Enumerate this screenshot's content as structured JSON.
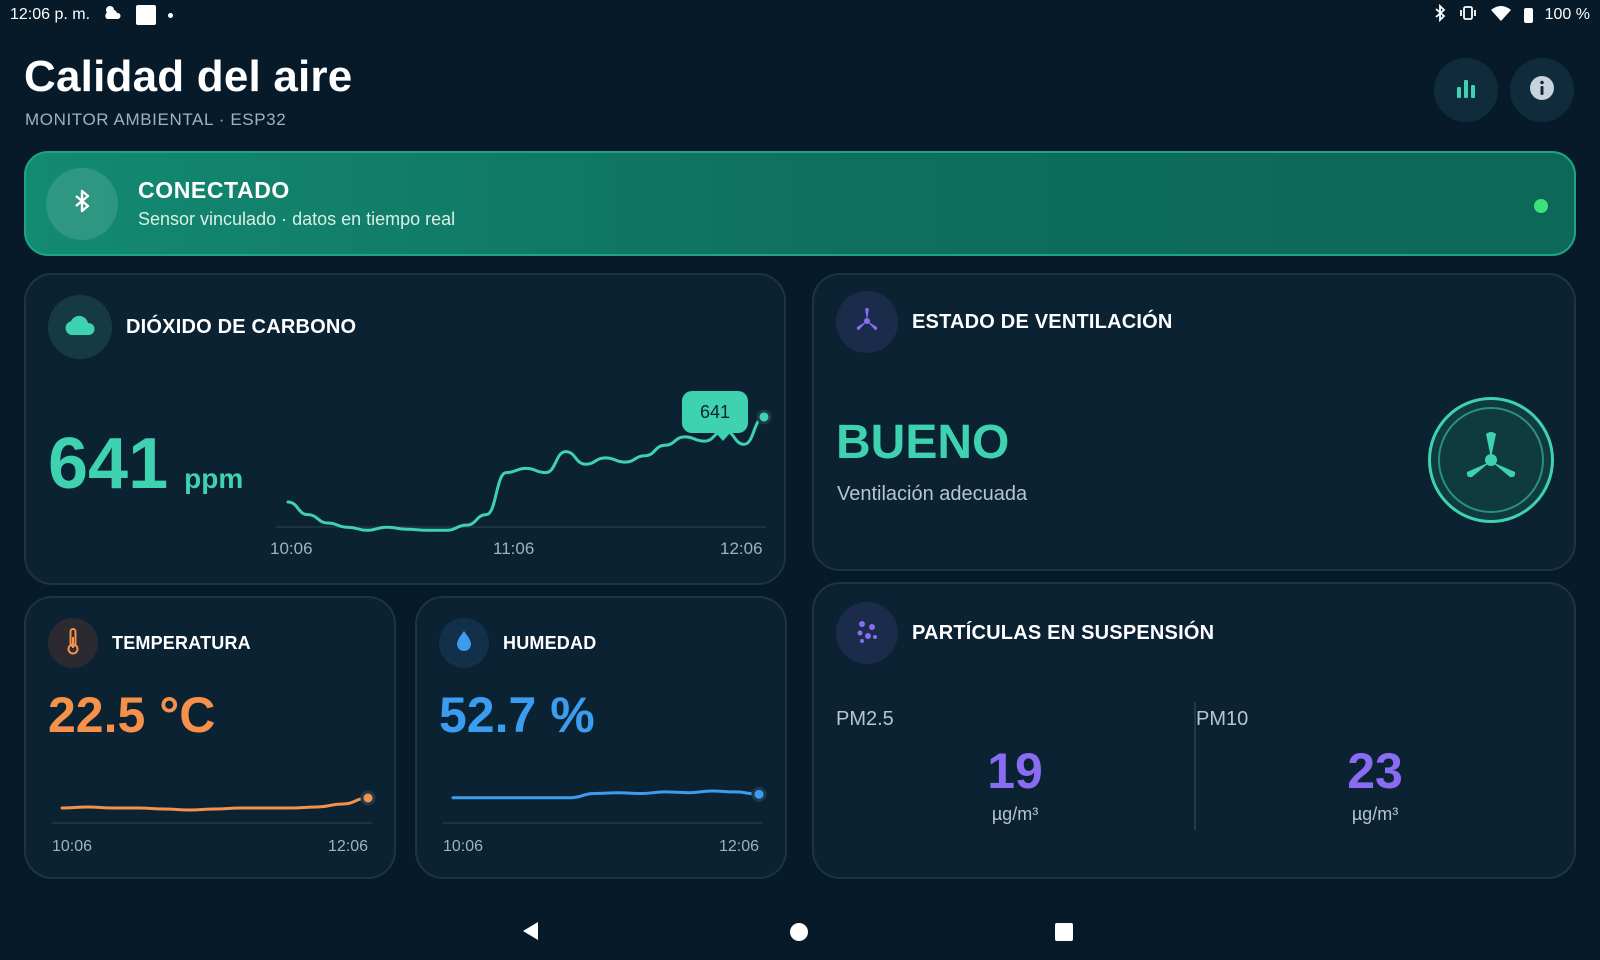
{
  "status_bar": {
    "time": "12:06 p. m.",
    "battery": "100 %",
    "icons": [
      "weather-icon",
      "notification-square-icon",
      "dot-icon",
      "bluetooth-icon",
      "vibrate-icon",
      "wifi-icon",
      "battery-icon"
    ]
  },
  "header": {
    "title": "Calidad del aire",
    "subtitle": "MONITOR AMBIENTAL · ESP32",
    "buttons": [
      {
        "name": "stats-button",
        "icon": "bar-chart-icon"
      },
      {
        "name": "info-button",
        "icon": "info-icon"
      }
    ]
  },
  "connection": {
    "status": "CONECTADO",
    "detail": "Sensor vinculado · datos en tiempo real",
    "indicator_color": "#3ee07a"
  },
  "co2": {
    "title": "DIÓXIDO DE CARBONO",
    "value": "641",
    "unit": "ppm",
    "tooltip": "641",
    "accent": "#3fd2b0"
  },
  "ventilation": {
    "title": "ESTADO DE VENTILACIÓN",
    "state": "BUENO",
    "description": "Ventilación adecuada",
    "accent": "#3fd2b0"
  },
  "temperature": {
    "title": "TEMPERATURA",
    "value": "22.5 °C",
    "accent": "#f5914a"
  },
  "humidity": {
    "title": "HUMEDAD",
    "value": "52.7 %",
    "accent": "#3a9df0"
  },
  "particles": {
    "title": "PARTÍCULAS EN SUSPENSIÓN",
    "accent": "#8a6cf2",
    "items": [
      {
        "label": "PM2.5",
        "value": "19",
        "unit": "µg/m³"
      },
      {
        "label": "PM10",
        "value": "23",
        "unit": "µg/m³"
      }
    ]
  },
  "chart_data": [
    {
      "type": "line",
      "title": "DIÓXIDO DE CARBONO",
      "x_ticks": [
        "10:06",
        "11:06",
        "12:06"
      ],
      "ylim": [
        500,
        700
      ],
      "series": [
        {
          "values": [
            560,
            548,
            540,
            536,
            533,
            536,
            534,
            533,
            533,
            538,
            548,
            588,
            592,
            588,
            608,
            596,
            602,
            598,
            604,
            614,
            622,
            618,
            628,
            615,
            641
          ]
        }
      ]
    },
    {
      "type": "line",
      "title": "TEMPERATURA",
      "x_ticks": [
        "10:06",
        "12:06"
      ],
      "ylim": [
        20,
        25
      ],
      "series": [
        {
          "values": [
            22.0,
            22.05,
            22.0,
            22.0,
            21.95,
            21.9,
            21.95,
            22.0,
            22.0,
            22.0,
            22.05,
            22.2,
            22.5
          ]
        }
      ]
    },
    {
      "type": "line",
      "title": "HUMEDAD",
      "x_ticks": [
        "10:06",
        "12:06"
      ],
      "ylim": [
        45,
        60
      ],
      "series": [
        {
          "values": [
            52.3,
            52.3,
            52.3,
            52.3,
            52.3,
            52.3,
            52.8,
            52.9,
            52.8,
            53.0,
            52.9,
            53.1,
            53.0,
            52.7
          ]
        }
      ]
    }
  ]
}
